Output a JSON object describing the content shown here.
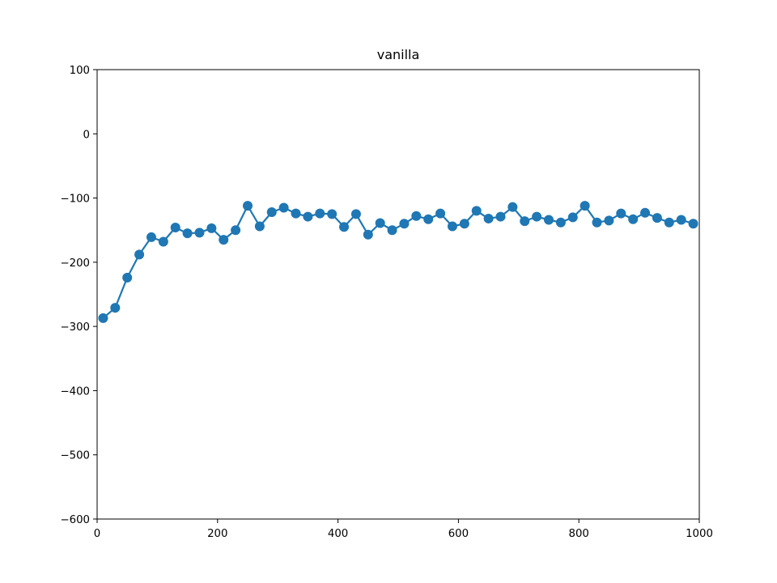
{
  "chart_data": {
    "type": "line",
    "title": "vanilla",
    "xlabel": "",
    "ylabel": "",
    "xlim": [
      0,
      1000
    ],
    "ylim": [
      -600,
      100
    ],
    "xticks": [
      0,
      200,
      400,
      600,
      800,
      1000
    ],
    "yticks": [
      100,
      0,
      -100,
      -200,
      -300,
      -400,
      -500,
      -600
    ],
    "xtick_labels": [
      "0",
      "200",
      "400",
      "600",
      "800",
      "1000"
    ],
    "ytick_labels": [
      "100",
      "0",
      "−100",
      "−200",
      "−300",
      "−400",
      "−500",
      "−600"
    ],
    "grid": false,
    "legend": "none",
    "series": [
      {
        "color": "#1f77b4",
        "marker": "circle",
        "x": [
          10,
          30,
          50,
          70,
          90,
          110,
          130,
          150,
          170,
          190,
          210,
          230,
          250,
          270,
          290,
          310,
          330,
          350,
          370,
          390,
          410,
          430,
          450,
          470,
          490,
          510,
          530,
          550,
          570,
          590,
          610,
          630,
          650,
          670,
          690,
          710,
          730,
          750,
          770,
          790,
          810,
          830,
          850,
          870,
          890,
          910,
          930,
          950,
          970,
          990
        ],
        "y": [
          -287,
          -271,
          -224,
          -188,
          -161,
          -168,
          -146,
          -155,
          -154,
          -147,
          -165,
          -150,
          -112,
          -144,
          -122,
          -115,
          -124,
          -129,
          -124,
          -125,
          -145,
          -125,
          -157,
          -139,
          -150,
          -140,
          -128,
          -133,
          -124,
          -144,
          -140,
          -120,
          -132,
          -129,
          -114,
          -136,
          -129,
          -134,
          -138,
          -130,
          -112,
          -138,
          -135,
          -124,
          -133,
          -123,
          -131,
          -138,
          -134,
          -140
        ]
      }
    ]
  }
}
